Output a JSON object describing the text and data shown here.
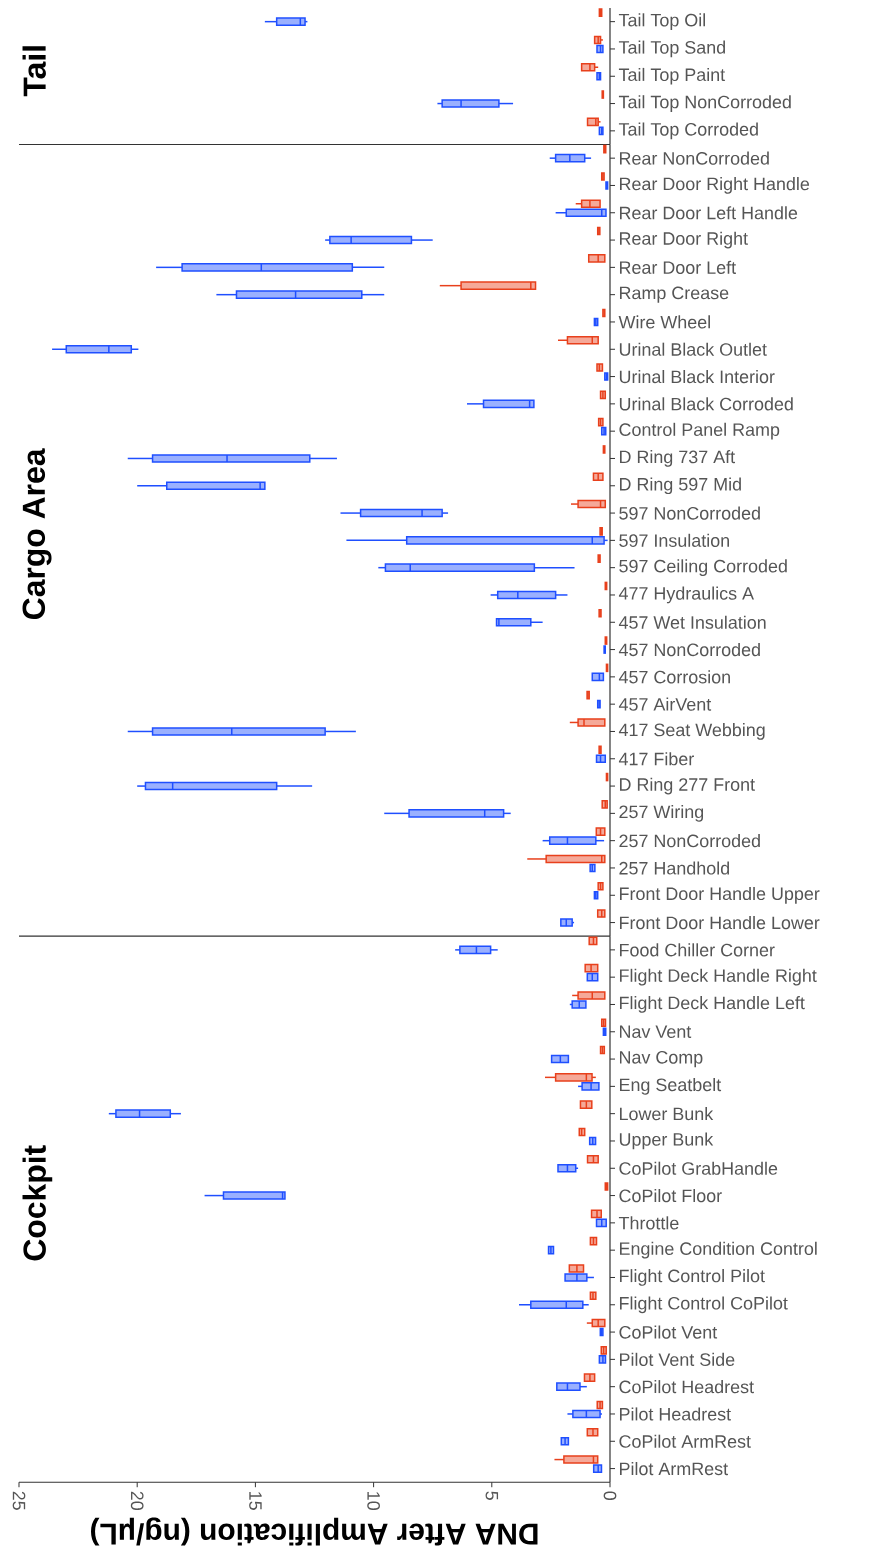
{
  "chart_data": [
    {
      "type": "box",
      "title": "Tail",
      "orientation": "horizontal",
      "xlim": [
        25,
        0
      ],
      "tick_labels": "y",
      "categories": [
        "Tail Top Oil",
        "Tail Top Sand",
        "Tail Top Paint",
        "Tail Top NonCorroded",
        "Tail Top Corroded"
      ],
      "series": [
        {
          "color": "#e8401c",
          "boxes": [
            {
              "low": 0.35,
              "q1": 0.35,
              "median": 0.4,
              "q3": 0.45,
              "high": 0.45
            },
            {
              "low": 0.3,
              "q1": 0.4,
              "median": 0.5,
              "q3": 0.65,
              "high": 0.65
            },
            {
              "low": 0.5,
              "q1": 0.65,
              "median": 0.85,
              "q3": 1.2,
              "high": 1.2
            },
            {
              "low": 0.28,
              "q1": 0.28,
              "median": 0.3,
              "q3": 0.33,
              "high": 0.33
            },
            {
              "low": 0.4,
              "q1": 0.5,
              "median": 0.6,
              "q3": 0.95,
              "high": 0.95
            }
          ]
        },
        {
          "color": "#1f4fff",
          "boxes": [
            {
              "low": 12.8,
              "q1": 12.9,
              "median": 13.1,
              "q3": 14.1,
              "high": 14.6
            },
            {
              "low": 0.3,
              "q1": 0.3,
              "median": 0.4,
              "q3": 0.55,
              "high": 0.55
            },
            {
              "low": 0.4,
              "q1": 0.4,
              "median": 0.45,
              "q3": 0.55,
              "high": 0.55
            },
            {
              "low": 4.1,
              "q1": 4.7,
              "median": 6.3,
              "q3": 7.1,
              "high": 7.3
            },
            {
              "low": 0.3,
              "q1": 0.3,
              "median": 0.35,
              "q3": 0.45,
              "high": 0.45
            }
          ]
        }
      ]
    },
    {
      "type": "box",
      "title": "Cargo Area",
      "orientation": "horizontal",
      "xlim": [
        25,
        0
      ],
      "tick_labels": "y",
      "categories": [
        "Rear NonCorroded",
        "Rear Door Right Handle",
        "Rear Door Left Handle",
        "Rear Door Right",
        "Rear Door Left",
        "Ramp Crease",
        "Wire Wheel",
        "Urinal Black Outlet",
        "Urinal Black Interior",
        "Urinal Black Corroded",
        "Control Panel Ramp",
        "D Ring 737 Aft",
        "D Ring 597 Mid",
        "597 NonCorroded",
        "597 Insulation",
        "597 Ceiling Corroded",
        "477 Hydraulics A",
        "457 Wet Insulation",
        "457 NonCorroded",
        "457 Corrosion",
        "457 AirVent",
        "417 Seat Webbing",
        "417 Fiber",
        "D Ring 277 Front",
        "257 Wiring",
        "257 NonCorroded",
        "257 Handhold",
        "Front Door Handle Upper",
        "Front Door Handle Lower"
      ],
      "series": [
        {
          "color": "#e8401c",
          "boxes": [
            {
              "low": 0.18,
              "q1": 0.18,
              "median": 0.22,
              "q3": 0.26,
              "high": 0.26
            },
            {
              "low": 0.25,
              "q1": 0.25,
              "median": 0.3,
              "q3": 0.35,
              "high": 0.35
            },
            {
              "low": 0.42,
              "q1": 0.42,
              "median": 0.85,
              "q3": 1.2,
              "high": 1.45
            },
            {
              "low": 0.43,
              "q1": 0.43,
              "median": 0.47,
              "q3": 0.52,
              "high": 0.52
            },
            {
              "low": 0.22,
              "q1": 0.22,
              "median": 0.5,
              "q3": 0.9,
              "high": 0.9
            },
            {
              "low": 3.15,
              "q1": 3.15,
              "median": 3.35,
              "q3": 6.3,
              "high": 7.2
            },
            {
              "low": 0.22,
              "q1": 0.22,
              "median": 0.25,
              "q3": 0.3,
              "high": 0.3
            },
            {
              "low": 0.5,
              "q1": 0.5,
              "median": 0.75,
              "q3": 1.8,
              "high": 2.2
            },
            {
              "low": 0.32,
              "q1": 0.32,
              "median": 0.45,
              "q3": 0.55,
              "high": 0.55
            },
            {
              "low": 0.2,
              "q1": 0.2,
              "median": 0.3,
              "q3": 0.4,
              "high": 0.4
            },
            {
              "low": 0.3,
              "q1": 0.3,
              "median": 0.4,
              "q3": 0.48,
              "high": 0.48
            },
            {
              "low": 0.22,
              "q1": 0.22,
              "median": 0.25,
              "q3": 0.28,
              "high": 0.28
            },
            {
              "low": 0.3,
              "q1": 0.3,
              "median": 0.5,
              "q3": 0.7,
              "high": 0.7
            },
            {
              "low": 0.2,
              "q1": 0.2,
              "median": 0.4,
              "q3": 1.35,
              "high": 1.65
            },
            {
              "low": 0.33,
              "q1": 0.33,
              "median": 0.37,
              "q3": 0.42,
              "high": 0.42
            },
            {
              "low": 0.42,
              "q1": 0.42,
              "median": 0.46,
              "q3": 0.5,
              "high": 0.5
            },
            {
              "low": 0.14,
              "q1": 0.14,
              "median": 0.17,
              "q3": 0.2,
              "high": 0.2
            },
            {
              "low": 0.38,
              "q1": 0.38,
              "median": 0.42,
              "q3": 0.46,
              "high": 0.46
            },
            {
              "low": 0.14,
              "q1": 0.14,
              "median": 0.17,
              "q3": 0.2,
              "high": 0.2
            },
            {
              "low": 0.1,
              "q1": 0.1,
              "median": 0.12,
              "q3": 0.15,
              "high": 0.15
            },
            {
              "low": 0.88,
              "q1": 0.88,
              "median": 0.93,
              "q3": 0.97,
              "high": 0.97
            },
            {
              "low": 0.22,
              "q1": 0.22,
              "median": 1.1,
              "q3": 1.35,
              "high": 1.7
            },
            {
              "low": 0.38,
              "q1": 0.38,
              "median": 0.42,
              "q3": 0.46,
              "high": 0.46
            },
            {
              "low": 0.1,
              "q1": 0.1,
              "median": 0.12,
              "q3": 0.15,
              "high": 0.15
            },
            {
              "low": 0.12,
              "q1": 0.12,
              "median": 0.2,
              "q3": 0.33,
              "high": 0.33
            },
            {
              "low": 0.22,
              "q1": 0.22,
              "median": 0.4,
              "q3": 0.58,
              "high": 0.58
            },
            {
              "low": 0.22,
              "q1": 0.22,
              "median": 0.35,
              "q3": 2.7,
              "high": 3.5
            },
            {
              "low": 0.3,
              "q1": 0.3,
              "median": 0.4,
              "q3": 0.5,
              "high": 0.5
            },
            {
              "low": 0.22,
              "q1": 0.22,
              "median": 0.35,
              "q3": 0.52,
              "high": 0.52
            }
          ]
        },
        {
          "color": "#1f4fff",
          "boxes": [
            {
              "low": 0.8,
              "q1": 1.07,
              "median": 1.7,
              "q3": 2.3,
              "high": 2.55
            },
            {
              "low": 0.1,
              "q1": 0.1,
              "median": 0.13,
              "q3": 0.17,
              "high": 0.17
            },
            {
              "low": 0.17,
              "q1": 0.17,
              "median": 0.35,
              "q3": 1.85,
              "high": 2.3
            },
            {
              "low": 7.5,
              "q1": 8.4,
              "median": 10.95,
              "q3": 11.85,
              "high": 12.05
            },
            {
              "low": 9.55,
              "q1": 10.9,
              "median": 14.75,
              "q3": 18.1,
              "high": 19.2
            },
            {
              "low": 9.55,
              "q1": 10.5,
              "median": 13.3,
              "q3": 15.8,
              "high": 16.65
            },
            {
              "low": 0.52,
              "q1": 0.52,
              "median": 0.6,
              "q3": 0.66,
              "high": 0.66
            },
            {
              "low": 19.95,
              "q1": 20.25,
              "median": 21.2,
              "q3": 23.0,
              "high": 23.6
            },
            {
              "low": 0.1,
              "q1": 0.1,
              "median": 0.15,
              "q3": 0.22,
              "high": 0.22
            },
            {
              "low": 3.22,
              "q1": 3.22,
              "median": 3.4,
              "q3": 5.35,
              "high": 6.05
            },
            {
              "low": 0.18,
              "q1": 0.18,
              "median": 0.25,
              "q3": 0.35,
              "high": 0.35
            },
            {
              "low": 11.55,
              "q1": 12.7,
              "median": 16.2,
              "q3": 19.35,
              "high": 20.4
            },
            {
              "low": 14.6,
              "q1": 14.6,
              "median": 14.8,
              "q3": 18.75,
              "high": 20.0
            },
            {
              "low": 6.85,
              "q1": 7.1,
              "median": 7.95,
              "q3": 10.55,
              "high": 11.4
            },
            {
              "low": 0.1,
              "q1": 0.25,
              "median": 0.75,
              "q3": 8.6,
              "high": 11.15
            },
            {
              "low": 1.5,
              "q1": 3.2,
              "median": 8.45,
              "q3": 9.5,
              "high": 9.8
            },
            {
              "low": 1.8,
              "q1": 2.3,
              "median": 3.9,
              "q3": 4.75,
              "high": 5.05
            },
            {
              "low": 2.85,
              "q1": 3.35,
              "median": 4.7,
              "q3": 4.8,
              "high": 4.8
            },
            {
              "low": 0.2,
              "q1": 0.2,
              "median": 0.22,
              "q3": 0.25,
              "high": 0.25
            },
            {
              "low": 0.28,
              "q1": 0.28,
              "median": 0.45,
              "q3": 0.75,
              "high": 0.75
            },
            {
              "low": 0.42,
              "q1": 0.42,
              "median": 0.46,
              "q3": 0.52,
              "high": 0.52
            },
            {
              "low": 10.75,
              "q1": 12.05,
              "median": 16.0,
              "q3": 19.35,
              "high": 20.4
            },
            {
              "low": 0.2,
              "q1": 0.2,
              "median": 0.4,
              "q3": 0.57,
              "high": 0.57
            },
            {
              "low": 12.6,
              "q1": 14.1,
              "median": 18.5,
              "q3": 19.65,
              "high": 20.0
            },
            {
              "low": 4.2,
              "q1": 4.5,
              "median": 5.3,
              "q3": 8.5,
              "high": 9.55
            },
            {
              "low": 0.25,
              "q1": 0.6,
              "median": 1.8,
              "q3": 2.55,
              "high": 2.85
            },
            {
              "low": 0.64,
              "q1": 0.64,
              "median": 0.75,
              "q3": 0.84,
              "high": 0.84
            },
            {
              "low": 0.52,
              "q1": 0.52,
              "median": 0.6,
              "q3": 0.66,
              "high": 0.66
            },
            {
              "low": 1.52,
              "q1": 1.6,
              "median": 1.85,
              "q3": 2.08,
              "high": 2.08
            }
          ]
        }
      ]
    },
    {
      "type": "box",
      "title": "Cockpit",
      "orientation": "horizontal",
      "xlim": [
        25,
        0
      ],
      "xticks": [
        25,
        20,
        15,
        10,
        5,
        0
      ],
      "xlabel": "DNA After Amplification (ng/μL)",
      "categories": [
        "Food Chiller Corner",
        "Flight Deck Handle Right",
        "Flight Deck Handle Left",
        "Nav Vent",
        "Nav Comp",
        "Eng Seatbelt",
        "Lower Bunk",
        "Upper Bunk",
        "CoPilot GrabHandle",
        "CoPilot Floor",
        "Throttle",
        "Engine Condition Control",
        "Flight Control Pilot",
        "Flight Control CoPilot",
        "CoPilot Vent",
        "Pilot Vent Side",
        "CoPilot Headrest",
        "Pilot Headrest",
        "CoPilot ArmRest",
        "Pilot ArmRest"
      ],
      "series": [
        {
          "color": "#e8401c",
          "boxes": [
            {
              "low": 0.56,
              "q1": 0.56,
              "median": 0.7,
              "q3": 0.88,
              "high": 0.88
            },
            {
              "low": 0.52,
              "q1": 0.52,
              "median": 0.8,
              "q3": 1.05,
              "high": 1.05
            },
            {
              "low": 0.22,
              "q1": 0.22,
              "median": 0.75,
              "q3": 1.35,
              "high": 1.6
            },
            {
              "low": 0.19,
              "q1": 0.19,
              "median": 0.27,
              "q3": 0.35,
              "high": 0.35
            },
            {
              "low": 0.24,
              "q1": 0.24,
              "median": 0.32,
              "q3": 0.4,
              "high": 0.4
            },
            {
              "low": 0.6,
              "q1": 0.76,
              "median": 1.0,
              "q3": 2.3,
              "high": 2.75
            },
            {
              "low": 0.77,
              "q1": 0.77,
              "median": 1.0,
              "q3": 1.25,
              "high": 1.25
            },
            {
              "low": 1.07,
              "q1": 1.07,
              "median": 1.2,
              "q3": 1.3,
              "high": 1.3
            },
            {
              "low": 0.5,
              "q1": 0.5,
              "median": 0.7,
              "q3": 0.95,
              "high": 0.95
            },
            {
              "low": 0.1,
              "q1": 0.1,
              "median": 0.15,
              "q3": 0.2,
              "high": 0.2
            },
            {
              "low": 0.37,
              "q1": 0.37,
              "median": 0.55,
              "q3": 0.78,
              "high": 0.78
            },
            {
              "low": 0.57,
              "q1": 0.57,
              "median": 0.7,
              "q3": 0.83,
              "high": 0.83
            },
            {
              "low": 1.12,
              "q1": 1.12,
              "median": 1.4,
              "q3": 1.72,
              "high": 1.72
            },
            {
              "low": 0.6,
              "q1": 0.6,
              "median": 0.72,
              "q3": 0.83,
              "high": 0.83
            },
            {
              "low": 0.22,
              "q1": 0.22,
              "median": 0.5,
              "q3": 0.75,
              "high": 0.98
            },
            {
              "low": 0.16,
              "q1": 0.16,
              "median": 0.27,
              "q3": 0.37,
              "high": 0.37
            },
            {
              "low": 0.65,
              "q1": 0.65,
              "median": 0.85,
              "q3": 1.08,
              "high": 1.08
            },
            {
              "low": 0.32,
              "q1": 0.32,
              "median": 0.42,
              "q3": 0.54,
              "high": 0.54
            },
            {
              "low": 0.52,
              "q1": 0.52,
              "median": 0.72,
              "q3": 0.96,
              "high": 0.96
            },
            {
              "low": 0.52,
              "q1": 0.52,
              "median": 0.7,
              "q3": 1.95,
              "high": 2.35
            }
          ]
        },
        {
          "color": "#1f4fff",
          "boxes": [
            {
              "low": 4.75,
              "q1": 5.05,
              "median": 5.65,
              "q3": 6.35,
              "high": 6.55
            },
            {
              "low": 0.52,
              "q1": 0.52,
              "median": 0.75,
              "q3": 0.96,
              "high": 0.96
            },
            {
              "low": 1.02,
              "q1": 1.02,
              "median": 1.3,
              "q3": 1.6,
              "high": 1.7
            },
            {
              "low": 0.18,
              "q1": 0.18,
              "median": 0.22,
              "q3": 0.28,
              "high": 0.28
            },
            {
              "low": 1.76,
              "q1": 1.76,
              "median": 2.1,
              "q3": 2.47,
              "high": 2.47
            },
            {
              "low": 0.47,
              "q1": 0.47,
              "median": 0.8,
              "q3": 1.18,
              "high": 1.35
            },
            {
              "low": 18.15,
              "q1": 18.6,
              "median": 19.9,
              "q3": 20.9,
              "high": 21.2
            },
            {
              "low": 0.61,
              "q1": 0.61,
              "median": 0.73,
              "q3": 0.86,
              "high": 0.86
            },
            {
              "low": 1.35,
              "q1": 1.45,
              "median": 1.8,
              "q3": 2.2,
              "high": 2.2
            },
            {
              "low": 13.75,
              "q1": 13.75,
              "median": 13.85,
              "q3": 16.35,
              "high": 17.15
            },
            {
              "low": 0.16,
              "q1": 0.16,
              "median": 0.35,
              "q3": 0.57,
              "high": 0.57
            },
            {
              "low": 2.39,
              "q1": 2.39,
              "median": 2.5,
              "q3": 2.6,
              "high": 2.6
            },
            {
              "low": 0.68,
              "q1": 0.98,
              "median": 1.4,
              "q3": 1.9,
              "high": 1.9
            },
            {
              "low": 0.9,
              "q1": 1.15,
              "median": 1.85,
              "q3": 3.35,
              "high": 3.85
            },
            {
              "low": 0.3,
              "q1": 0.3,
              "median": 0.35,
              "q3": 0.41,
              "high": 0.41
            },
            {
              "low": 0.19,
              "q1": 0.19,
              "median": 0.3,
              "q3": 0.45,
              "high": 0.45
            },
            {
              "low": 0.98,
              "q1": 1.27,
              "median": 1.8,
              "q3": 2.25,
              "high": 2.25
            },
            {
              "low": 0.34,
              "q1": 0.42,
              "median": 1.0,
              "q3": 1.57,
              "high": 1.8
            },
            {
              "low": 1.76,
              "q1": 1.76,
              "median": 1.9,
              "q3": 2.06,
              "high": 2.06
            },
            {
              "low": 0.36,
              "q1": 0.36,
              "median": 0.5,
              "q3": 0.69,
              "high": 0.69
            }
          ]
        }
      ]
    }
  ]
}
